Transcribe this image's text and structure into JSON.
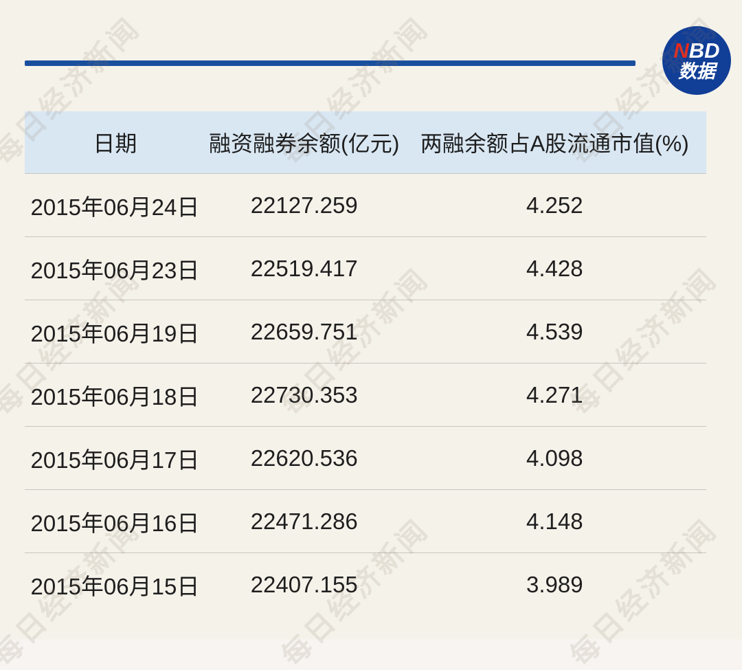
{
  "page": {
    "background_color": "#f5f2ea",
    "accent_blue": "#1a4f9e"
  },
  "logo": {
    "line1_red": "N",
    "line1_white": "BD",
    "line2": "数据",
    "circle_color": "#113e96",
    "n_color": "#e32a1d"
  },
  "watermark": {
    "text": "每日经济新闻"
  },
  "table_style": {
    "header_bg": "#d9e7f3",
    "divider_color": "#c8c5bf",
    "text_color": "#1e1e1e"
  },
  "chart_data": {
    "type": "table",
    "columns": [
      "日期",
      "融资融券余额(亿元)",
      "两融余额占A股流通市值(%)"
    ],
    "rows": [
      [
        "2015年06月24日",
        22127.259,
        4.252
      ],
      [
        "2015年06月23日",
        22519.417,
        4.428
      ],
      [
        "2015年06月19日",
        22659.751,
        4.539
      ],
      [
        "2015年06月18日",
        22730.353,
        4.271
      ],
      [
        "2015年06月17日",
        22620.536,
        4.098
      ],
      [
        "2015年06月16日",
        22471.286,
        4.148
      ],
      [
        "2015年06月15日",
        22407.155,
        3.989
      ]
    ]
  }
}
